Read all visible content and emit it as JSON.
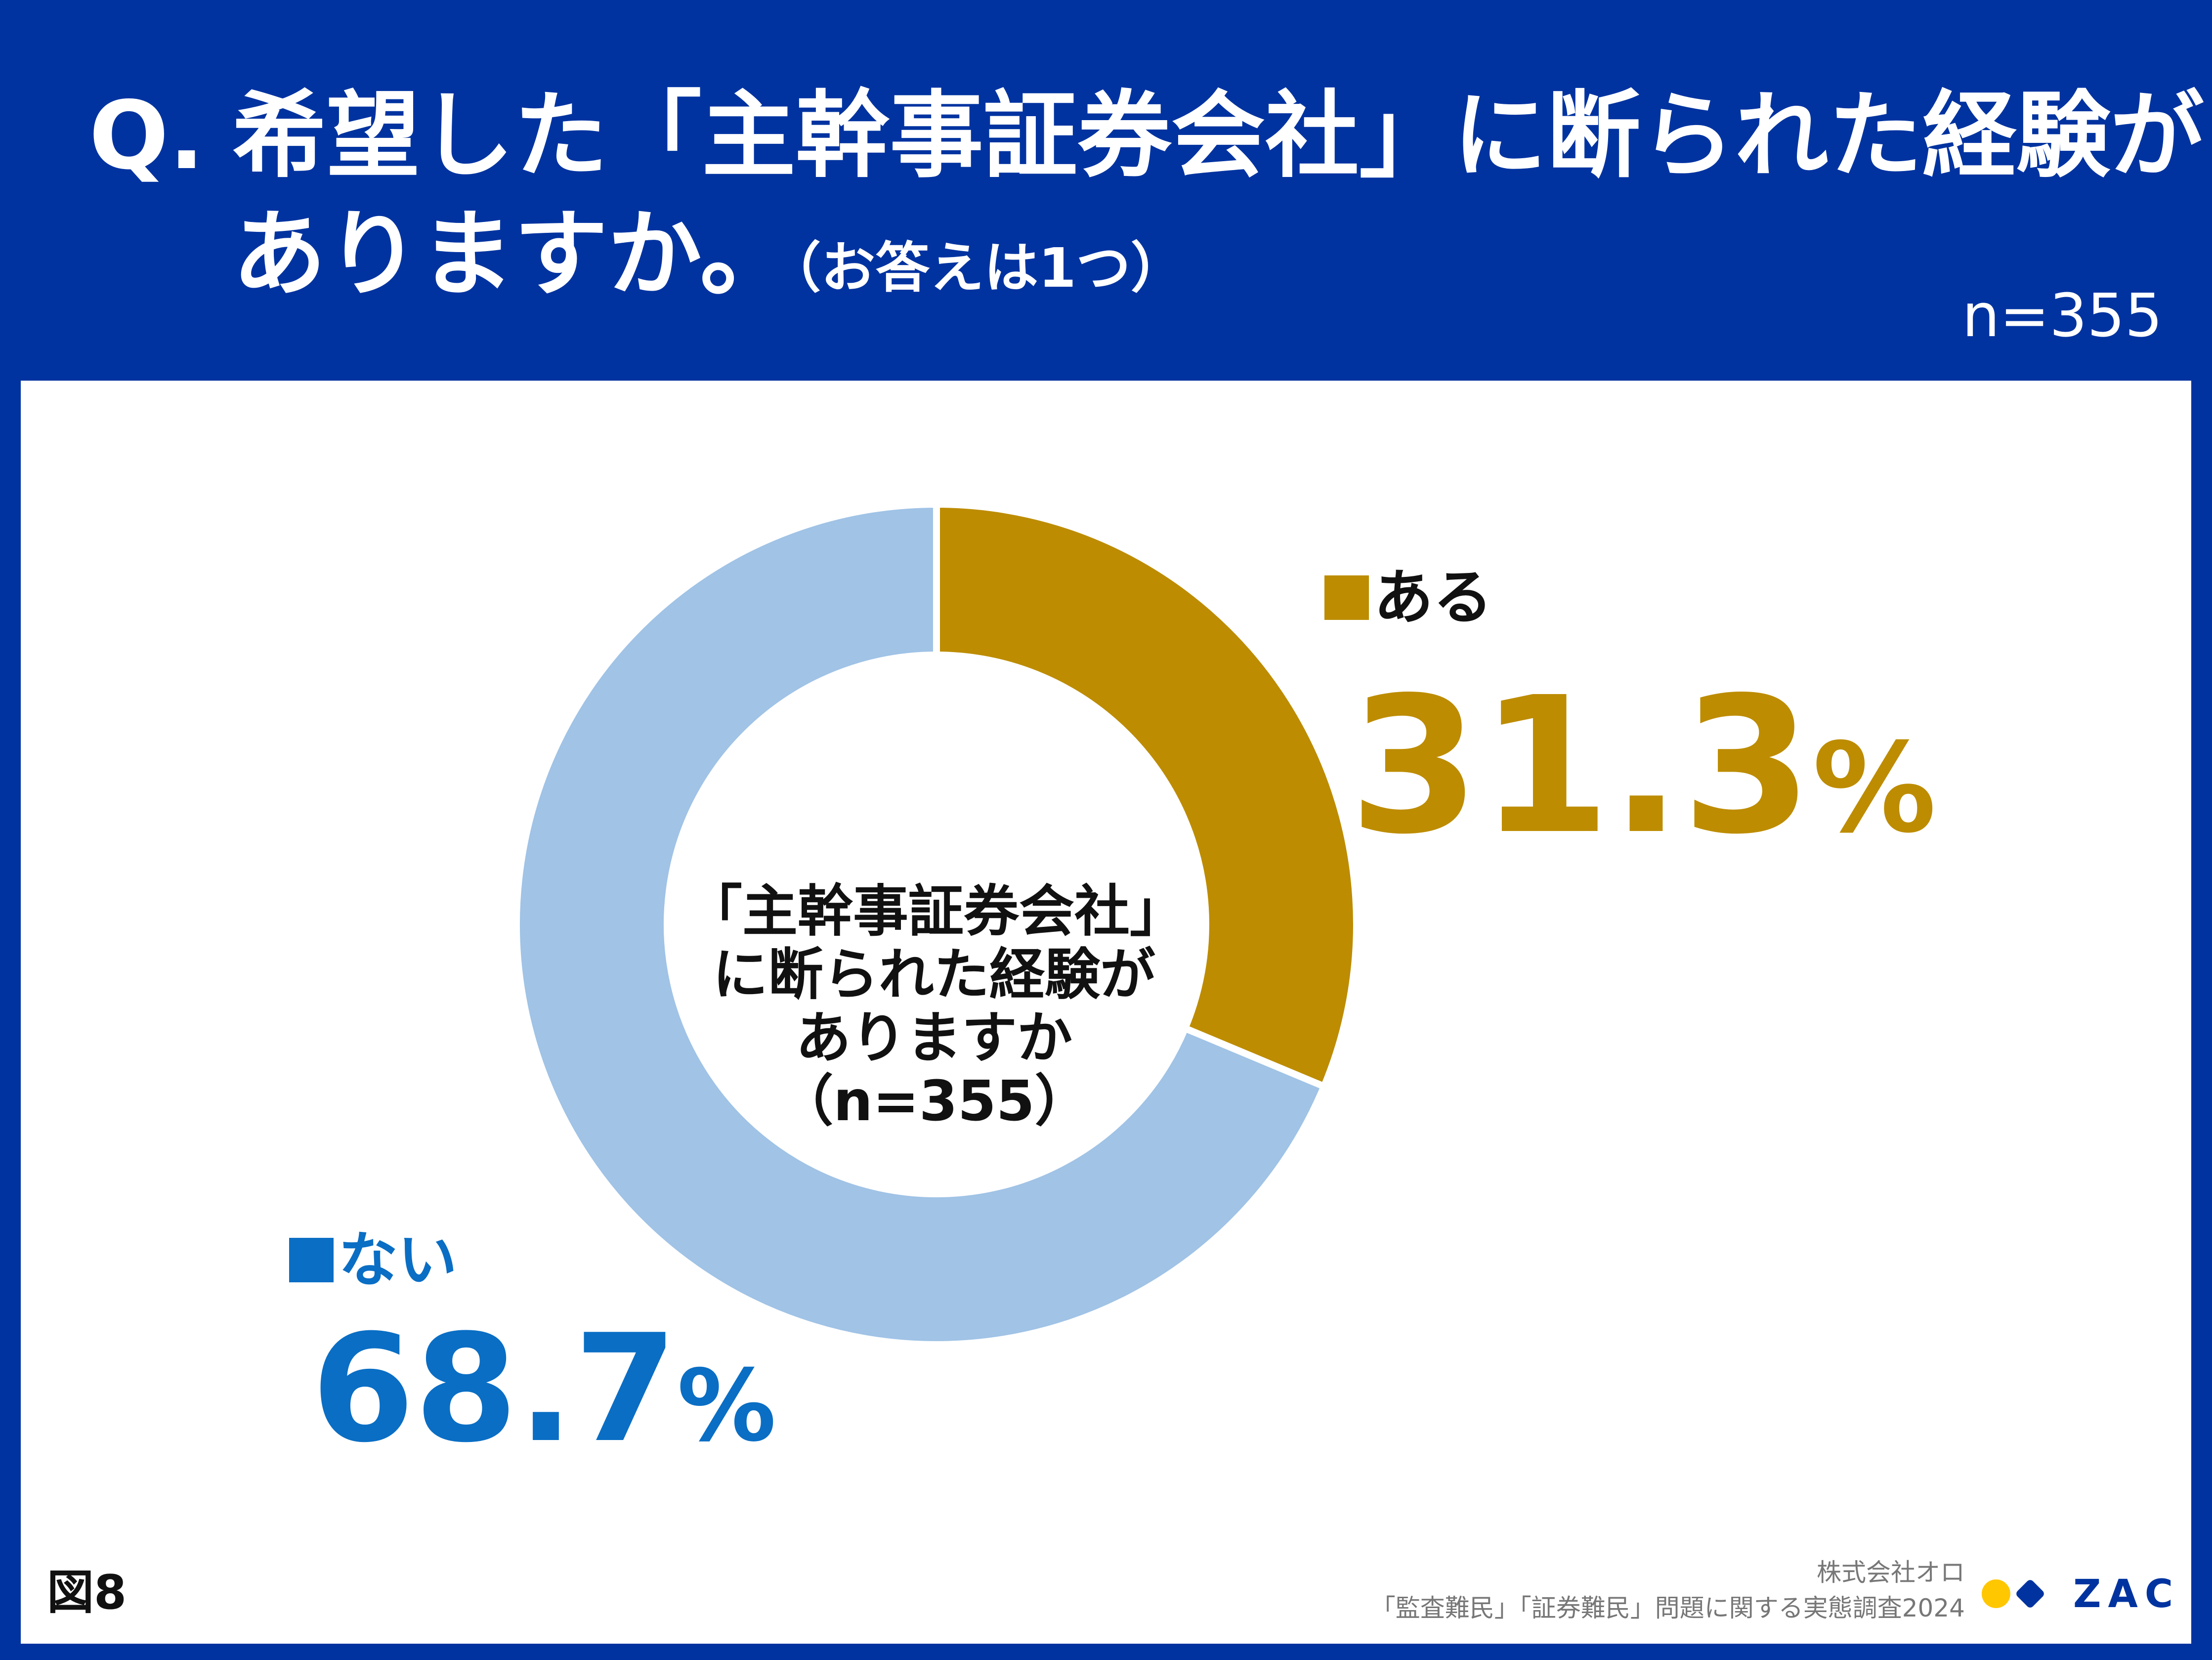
{
  "header": {
    "q_mark": "Q.",
    "question_line1": "希望した「主幹事証券会社」に断られた経験が",
    "question_line2": "ありますか。",
    "question_note": "（お答えは1つ）",
    "n_label": "n=355"
  },
  "chart_data": {
    "type": "pie",
    "style": "donut",
    "center_label_lines": [
      "「主幹事証券会社」",
      "に断られた経験が",
      "ありますか",
      "（n=355）"
    ],
    "categories": [
      "ある",
      "ない"
    ],
    "values": [
      31.3,
      68.7
    ],
    "value_labels": [
      "31.3",
      "68.7"
    ],
    "unit": "%",
    "colors": [
      "#bd8c00",
      "#a0c3e6"
    ],
    "label_colors": [
      "#bd8c00",
      "#0a6ec4"
    ],
    "legend_placement": "beside slices"
  },
  "footer": {
    "figure_label": "図8",
    "company": "株式会社オロ",
    "survey": "「監査難民」「証券難民」問題に関する実態調査2024",
    "logo_text": "ZAC"
  },
  "colors": {
    "brand_blue": "#0033a0",
    "panel": "#ffffff",
    "logo_yellow": "#ffc700"
  }
}
